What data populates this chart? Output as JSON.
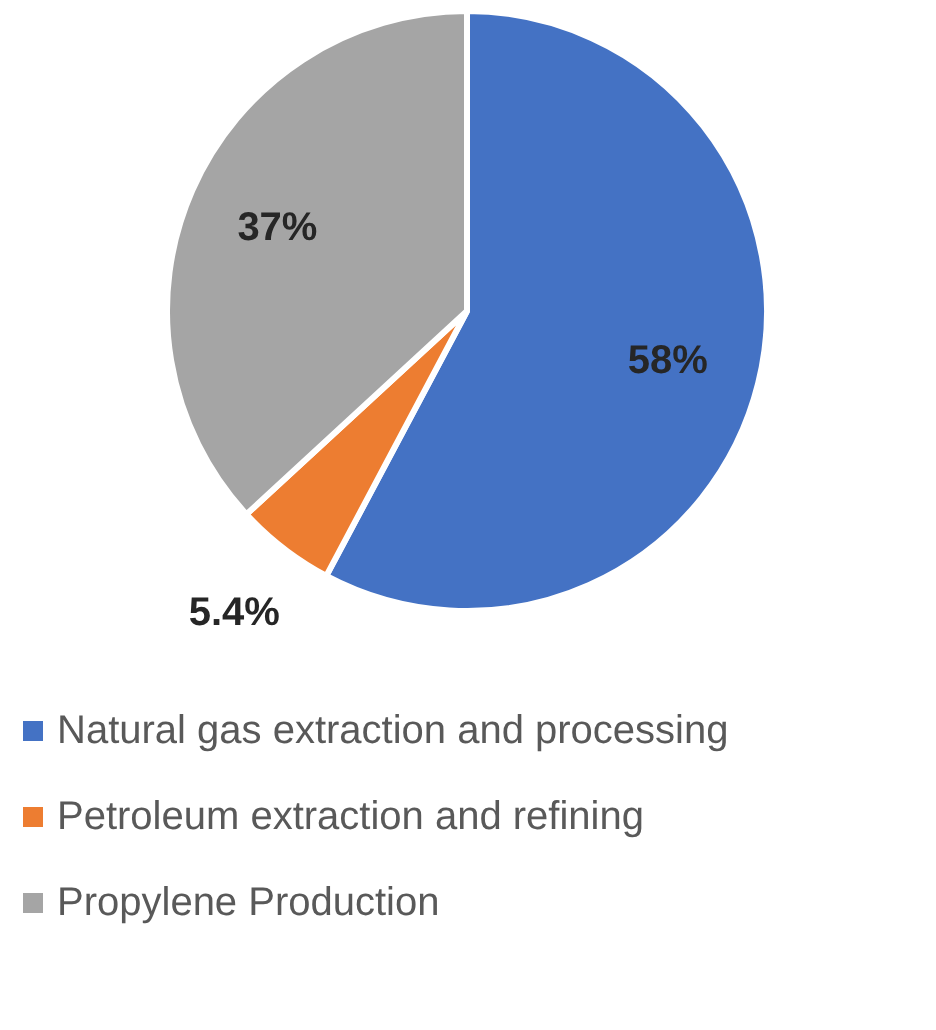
{
  "chart_data": {
    "type": "pie",
    "categories": [
      "Natural gas extraction and processing",
      "Petroleum extraction and refining",
      "Propylene Production"
    ],
    "values": [
      58,
      5.4,
      37
    ],
    "colors": [
      "#4472c4",
      "#ed7d31",
      "#a5a5a5"
    ],
    "value_labels": [
      "58%",
      "5.4%",
      "37%"
    ],
    "legend": "bottom"
  }
}
